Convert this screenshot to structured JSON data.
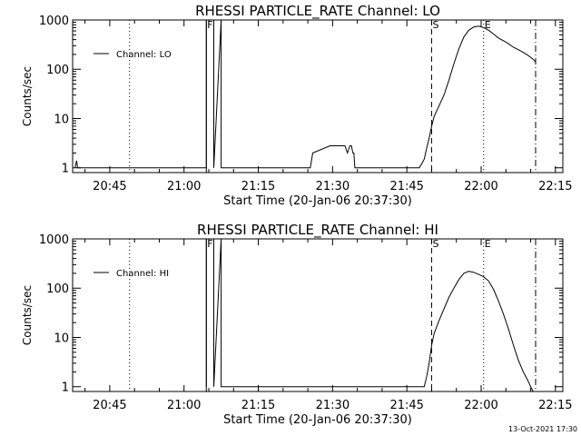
{
  "footer_timestamp": "13-Oct-2021 17:30",
  "chart_data": [
    {
      "type": "line",
      "title": "RHESSI PARTICLE_RATE Channel: LO",
      "xlabel": "Start Time (20-Jan-06 20:37:30)",
      "ylabel": "Counts/sec",
      "yscale": "log",
      "ylim": [
        0.8,
        1000
      ],
      "xlim_minutes": [
        0,
        99
      ],
      "x_tick_labels": [
        "20:45",
        "21:00",
        "21:15",
        "21:30",
        "21:45",
        "22:00",
        "22:15"
      ],
      "y_tick_labels": [
        "1",
        "10",
        "100",
        "1000"
      ],
      "legend": "Channel: LO",
      "markers": [
        {
          "label": "F",
          "minute": 27,
          "style": "solid"
        },
        {
          "label": "S",
          "minute": 72.5,
          "style": "dashed"
        },
        {
          "label": "E",
          "minute": 83,
          "style": "dotted"
        }
      ],
      "extra_vlines": [
        {
          "minute": 11.5,
          "style": "dotted"
        },
        {
          "minute": 93.5,
          "style": "dashdot"
        }
      ],
      "series": [
        {
          "x": [
            0.5,
            0.8,
            1.0,
            1.2,
            27,
            27,
            28.5,
            28.5,
            30,
            30,
            48,
            48.5,
            52,
            53,
            53.5,
            54,
            55,
            55.5,
            56,
            56.3,
            56.6,
            56.8,
            57,
            70,
            70.5,
            71,
            71.5,
            72,
            72.5,
            73,
            74,
            75,
            76,
            77,
            78,
            79,
            80,
            81,
            82,
            83,
            84,
            85,
            86,
            87,
            88,
            89,
            90,
            91,
            92,
            93,
            93.5
          ],
          "y": [
            1,
            1.4,
            1,
            1,
            1,
            1000,
            1000,
            1,
            1000,
            1,
            1,
            2,
            2.8,
            2.8,
            2.8,
            2.8,
            2.8,
            2,
            2.8,
            2.8,
            2,
            2,
            1,
            1,
            1.2,
            1.5,
            2.5,
            4,
            7,
            11,
            18,
            30,
            60,
            130,
            260,
            450,
            620,
            720,
            750,
            700,
            620,
            520,
            430,
            380,
            330,
            280,
            250,
            220,
            190,
            160,
            140
          ]
        }
      ]
    },
    {
      "type": "line",
      "title": "RHESSI PARTICLE_RATE Channel: HI",
      "xlabel": "Start Time (20-Jan-06 20:37:30)",
      "ylabel": "Counts/sec",
      "yscale": "log",
      "ylim": [
        0.8,
        1000
      ],
      "xlim_minutes": [
        0,
        99
      ],
      "x_tick_labels": [
        "20:45",
        "21:00",
        "21:15",
        "21:30",
        "21:45",
        "22:00",
        "22:15"
      ],
      "y_tick_labels": [
        "1",
        "10",
        "100",
        "1000"
      ],
      "legend": "Channel: HI",
      "markers": [
        {
          "label": "F",
          "minute": 27,
          "style": "solid"
        },
        {
          "label": "S",
          "minute": 72.5,
          "style": "dashed"
        },
        {
          "label": "E",
          "minute": 83,
          "style": "dotted"
        }
      ],
      "extra_vlines": [
        {
          "minute": 11.5,
          "style": "dotted"
        },
        {
          "minute": 93.5,
          "style": "dashdot"
        }
      ],
      "series": [
        {
          "x": [
            27,
            27,
            28.5,
            28.5,
            30,
            30,
            71,
            71.5,
            72,
            72.5,
            73,
            74,
            75,
            76,
            77,
            78,
            79,
            80,
            81,
            82,
            83,
            84,
            85,
            86,
            87,
            88,
            89,
            90,
            91,
            92,
            92.5,
            93
          ],
          "y": [
            1,
            1000,
            1000,
            1,
            1000,
            1,
            1,
            1.6,
            3,
            7,
            12,
            22,
            38,
            65,
            100,
            150,
            200,
            220,
            210,
            190,
            170,
            140,
            95,
            55,
            30,
            15,
            7,
            3.5,
            2,
            1.3,
            1,
            0.8
          ]
        }
      ]
    }
  ]
}
